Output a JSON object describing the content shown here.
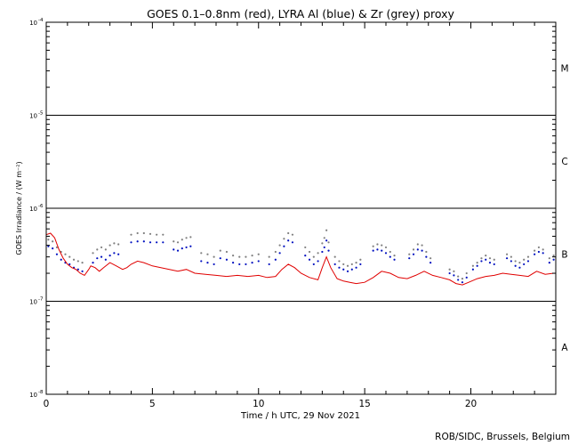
{
  "chart_data": {
    "type": "line",
    "title": "GOES 0.1–0.8nm (red), LYRA Al (blue) & Zr (grey) proxy",
    "xlabel": "Time / h UTC, 29 Nov 2021",
    "ylabel": "GOES Irradiance / (W m⁻²)",
    "credit": "ROB/SIDC, Brussels, Belgium",
    "xlim": [
      0,
      24
    ],
    "ylim": [
      1e-08,
      0.0001
    ],
    "yscale": "log",
    "x_ticks": [
      0,
      5,
      10,
      15,
      20
    ],
    "x_tick_labels": [
      "0",
      "5",
      "10",
      "15",
      "20"
    ],
    "y_ticks": [
      1e-08,
      1e-07,
      1e-06,
      1e-05,
      0.0001
    ],
    "y_tick_labels": [
      {
        "base": "10",
        "exp": "-8"
      },
      {
        "base": "10",
        "exp": "-7"
      },
      {
        "base": "10",
        "exp": "-6"
      },
      {
        "base": "10",
        "exp": "-5"
      },
      {
        "base": "10",
        "exp": "-4"
      }
    ],
    "flare_classes": [
      {
        "label": "A",
        "y": 3.2e-08
      },
      {
        "label": "B",
        "y": 3.2e-07
      },
      {
        "label": "C",
        "y": 3.2e-06
      },
      {
        "label": "M",
        "y": 3.2e-05
      }
    ],
    "class_boundaries": [
      1e-07,
      1e-06,
      1e-05
    ],
    "series": [
      {
        "name": "GOES 0.1–0.8nm",
        "color": "#e00000",
        "style": "line",
        "x": [
          0.0,
          0.2,
          0.4,
          0.6,
          0.8,
          1.0,
          1.2,
          1.4,
          1.6,
          1.8,
          2.0,
          2.1,
          2.3,
          2.5,
          2.7,
          3.0,
          3.3,
          3.6,
          3.8,
          4.0,
          4.3,
          4.6,
          5.0,
          5.4,
          5.8,
          6.2,
          6.6,
          7.0,
          7.5,
          8.0,
          8.5,
          9.0,
          9.5,
          10.0,
          10.4,
          10.8,
          11.1,
          11.4,
          11.7,
          12.0,
          12.4,
          12.8,
          13.0,
          13.2,
          13.4,
          13.7,
          14.0,
          14.3,
          14.6,
          15.0,
          15.4,
          15.8,
          16.2,
          16.6,
          17.0,
          17.4,
          17.8,
          18.2,
          18.6,
          19.0,
          19.3,
          19.6,
          19.9,
          20.3,
          20.7,
          21.1,
          21.5,
          21.9,
          22.3,
          22.7,
          23.1,
          23.5,
          23.9
        ],
        "y": [
          5.2e-07,
          5.4e-07,
          4.8e-07,
          3.6e-07,
          2.9e-07,
          2.5e-07,
          2.3e-07,
          2.2e-07,
          2e-07,
          1.9e-07,
          2.2e-07,
          2.4e-07,
          2.3e-07,
          2.1e-07,
          2.3e-07,
          2.6e-07,
          2.4e-07,
          2.2e-07,
          2.3e-07,
          2.5e-07,
          2.7e-07,
          2.6e-07,
          2.4e-07,
          2.3e-07,
          2.2e-07,
          2.1e-07,
          2.2e-07,
          2e-07,
          1.95e-07,
          1.9e-07,
          1.85e-07,
          1.9e-07,
          1.85e-07,
          1.9e-07,
          1.8e-07,
          1.85e-07,
          2.2e-07,
          2.5e-07,
          2.3e-07,
          2e-07,
          1.8e-07,
          1.7e-07,
          2.3e-07,
          3e-07,
          2.3e-07,
          1.75e-07,
          1.65e-07,
          1.6e-07,
          1.55e-07,
          1.6e-07,
          1.8e-07,
          2.1e-07,
          2e-07,
          1.8e-07,
          1.75e-07,
          1.9e-07,
          2.1e-07,
          1.9e-07,
          1.8e-07,
          1.7e-07,
          1.55e-07,
          1.5e-07,
          1.6e-07,
          1.75e-07,
          1.85e-07,
          1.9e-07,
          2e-07,
          1.95e-07,
          1.9e-07,
          1.85e-07,
          2.1e-07,
          1.95e-07,
          2e-07
        ]
      },
      {
        "name": "LYRA Al proxy",
        "color": "#0010c0",
        "style": "dots",
        "x": [
          0.1,
          0.3,
          0.5,
          0.7,
          0.9,
          1.1,
          1.3,
          1.5,
          1.7,
          2.2,
          2.4,
          2.6,
          2.8,
          3.0,
          3.2,
          3.4,
          4.0,
          4.3,
          4.6,
          4.9,
          5.2,
          5.5,
          6.0,
          6.2,
          6.4,
          6.6,
          6.8,
          7.3,
          7.6,
          7.9,
          8.2,
          8.5,
          8.8,
          9.1,
          9.4,
          9.7,
          10.0,
          10.5,
          10.8,
          11.0,
          11.2,
          11.4,
          11.6,
          12.2,
          12.4,
          12.6,
          12.8,
          13.0,
          13.1,
          13.2,
          13.3,
          13.6,
          13.8,
          14.0,
          14.2,
          14.4,
          14.6,
          14.8,
          15.4,
          15.6,
          15.8,
          16.0,
          16.2,
          16.4,
          17.1,
          17.3,
          17.5,
          17.7,
          17.9,
          18.1,
          19.0,
          19.2,
          19.4,
          19.6,
          19.8,
          20.1,
          20.3,
          20.5,
          20.7,
          20.9,
          21.1,
          21.7,
          21.9,
          22.1,
          22.3,
          22.5,
          22.7,
          23.0,
          23.2,
          23.4,
          23.7,
          23.9
        ],
        "y": [
          3.9e-07,
          3.7e-07,
          3.2e-07,
          2.8e-07,
          2.6e-07,
          2.5e-07,
          2.3e-07,
          2.2e-07,
          2.1e-07,
          2.6e-07,
          2.9e-07,
          3e-07,
          2.8e-07,
          3.1e-07,
          3.3e-07,
          3.2e-07,
          4.3e-07,
          4.4e-07,
          4.4e-07,
          4.3e-07,
          4.3e-07,
          4.3e-07,
          3.6e-07,
          3.5e-07,
          3.7e-07,
          3.8e-07,
          3.9e-07,
          2.7e-07,
          2.6e-07,
          2.5e-07,
          2.9e-07,
          2.8e-07,
          2.6e-07,
          2.5e-07,
          2.5e-07,
          2.6e-07,
          2.7e-07,
          2.5e-07,
          2.8e-07,
          3.3e-07,
          3.9e-07,
          4.5e-07,
          4.3e-07,
          3.1e-07,
          2.8e-07,
          2.5e-07,
          2.7e-07,
          3.4e-07,
          3.8e-07,
          4.5e-07,
          3.5e-07,
          2.5e-07,
          2.3e-07,
          2.2e-07,
          2.1e-07,
          2.2e-07,
          2.3e-07,
          2.5e-07,
          3.5e-07,
          3.6e-07,
          3.5e-07,
          3.3e-07,
          3e-07,
          2.8e-07,
          2.9e-07,
          3.2e-07,
          3.6e-07,
          3.5e-07,
          3e-07,
          2.6e-07,
          2e-07,
          1.9e-07,
          1.7e-07,
          1.6e-07,
          1.8e-07,
          2.2e-07,
          2.4e-07,
          2.7e-07,
          2.8e-07,
          2.6e-07,
          2.5e-07,
          2.9e-07,
          2.7e-07,
          2.4e-07,
          2.3e-07,
          2.5e-07,
          2.7e-07,
          3.2e-07,
          3.4e-07,
          3.3e-07,
          2.6e-07,
          2.8e-07
        ]
      },
      {
        "name": "LYRA Zr proxy",
        "color": "#808080",
        "style": "dots",
        "x": [
          0.1,
          0.3,
          0.5,
          0.7,
          0.9,
          1.1,
          1.3,
          1.5,
          1.7,
          2.2,
          2.4,
          2.6,
          2.8,
          3.0,
          3.2,
          3.4,
          4.0,
          4.3,
          4.6,
          4.9,
          5.2,
          5.5,
          6.0,
          6.2,
          6.4,
          6.6,
          6.8,
          7.3,
          7.6,
          7.9,
          8.2,
          8.5,
          8.8,
          9.1,
          9.4,
          9.7,
          10.0,
          10.5,
          10.8,
          11.0,
          11.2,
          11.4,
          11.6,
          12.2,
          12.4,
          12.6,
          12.8,
          13.0,
          13.1,
          13.2,
          13.3,
          13.6,
          13.8,
          14.0,
          14.2,
          14.4,
          14.6,
          14.8,
          15.4,
          15.6,
          15.8,
          16.0,
          16.2,
          16.4,
          17.1,
          17.3,
          17.5,
          17.7,
          17.9,
          18.1,
          19.0,
          19.2,
          19.4,
          19.6,
          19.8,
          20.1,
          20.3,
          20.5,
          20.7,
          20.9,
          21.1,
          21.7,
          21.9,
          22.1,
          22.3,
          22.5,
          22.7,
          23.0,
          23.2,
          23.4,
          23.7,
          23.9
        ],
        "y": [
          4.6e-07,
          4.4e-07,
          3.8e-07,
          3.4e-07,
          3.2e-07,
          3e-07,
          2.8e-07,
          2.7e-07,
          2.6e-07,
          3.3e-07,
          3.6e-07,
          3.8e-07,
          3.6e-07,
          4e-07,
          4.2e-07,
          4.1e-07,
          5.2e-07,
          5.4e-07,
          5.4e-07,
          5.3e-07,
          5.2e-07,
          5.2e-07,
          4.4e-07,
          4.3e-07,
          4.6e-07,
          4.8e-07,
          4.9e-07,
          3.3e-07,
          3.2e-07,
          3e-07,
          3.5e-07,
          3.4e-07,
          3.1e-07,
          3e-07,
          3e-07,
          3.1e-07,
          3.2e-07,
          3e-07,
          3.4e-07,
          4e-07,
          4.7e-07,
          5.4e-07,
          5.2e-07,
          3.8e-07,
          3.4e-07,
          3e-07,
          3.3e-07,
          4.2e-07,
          4.8e-07,
          5.8e-07,
          4.3e-07,
          3e-07,
          2.7e-07,
          2.5e-07,
          2.4e-07,
          2.5e-07,
          2.6e-07,
          2.8e-07,
          3.9e-07,
          4.1e-07,
          4e-07,
          3.8e-07,
          3.4e-07,
          3.1e-07,
          3.2e-07,
          3.6e-07,
          4.1e-07,
          4e-07,
          3.4e-07,
          2.9e-07,
          2.2e-07,
          2.1e-07,
          1.85e-07,
          1.75e-07,
          2e-07,
          2.4e-07,
          2.6e-07,
          2.9e-07,
          3.1e-07,
          2.9e-07,
          2.8e-07,
          3.2e-07,
          3e-07,
          2.7e-07,
          2.6e-07,
          2.8e-07,
          3e-07,
          3.5e-07,
          3.8e-07,
          3.6e-07,
          2.9e-07,
          3.1e-07
        ]
      }
    ]
  }
}
